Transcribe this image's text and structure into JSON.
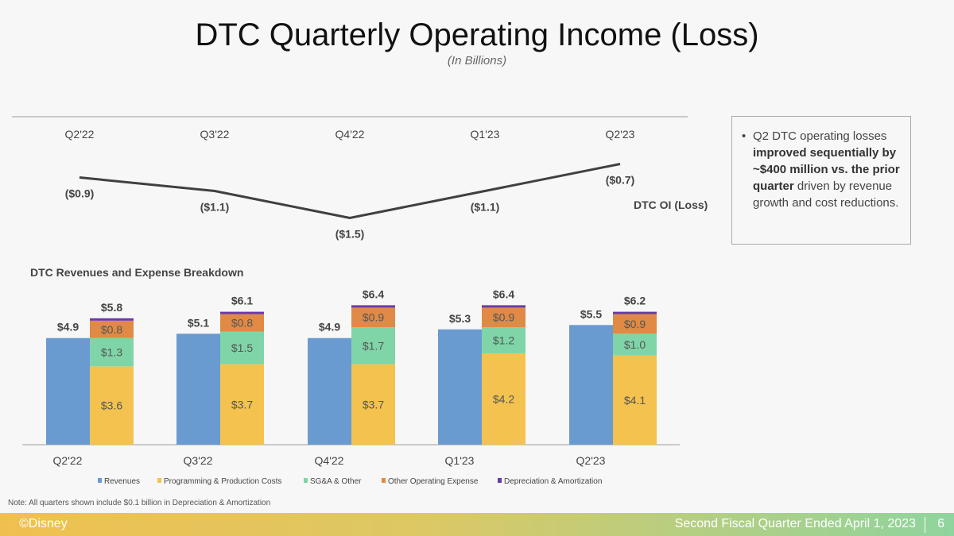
{
  "title": "DTC Quarterly Operating Income (Loss)",
  "subtitle": "(In Billions)",
  "callout": {
    "pre": "Q2 DTC operating losses ",
    "bold": "improved sequentially by ~$400 million vs. the prior quarter",
    "post": " driven by revenue growth and cost reductions."
  },
  "note": "Note: All quarters shown include $0.1 billion in Depreciation & Amortization",
  "footer": {
    "brand": "©Disney",
    "period": "Second Fiscal Quarter Ended April 1, 2023",
    "page": "6"
  },
  "chart_data": [
    {
      "type": "line",
      "title": "",
      "categories": [
        "Q2'22",
        "Q3'22",
        "Q4'22",
        "Q1'23",
        "Q2'23"
      ],
      "series": [
        {
          "name": "DTC OI (Loss)",
          "values": [
            -0.9,
            -1.1,
            -1.5,
            -1.1,
            -0.7
          ]
        }
      ],
      "labels": [
        "($0.9)",
        "($1.1)",
        "($1.5)",
        "($1.1)",
        "($0.7)"
      ],
      "color": "#404040"
    },
    {
      "type": "bar",
      "title": "DTC Revenues and Expense Breakdown",
      "categories": [
        "Q2'22",
        "Q3'22",
        "Q4'22",
        "Q1'23",
        "Q2'23"
      ],
      "revenues": {
        "name": "Revenues",
        "color": "#6a9bd0",
        "values": [
          4.9,
          5.1,
          4.9,
          5.3,
          5.5
        ]
      },
      "expense_series": [
        {
          "name": "Programming & Production Costs",
          "color": "#f3c24f",
          "values": [
            3.6,
            3.7,
            3.7,
            4.2,
            4.1
          ]
        },
        {
          "name": "SG&A & Other",
          "color": "#7fd5a8",
          "values": [
            1.3,
            1.5,
            1.7,
            1.2,
            1.0
          ]
        },
        {
          "name": "Other Operating Expense",
          "color": "#e08a45",
          "values": [
            0.8,
            0.8,
            0.9,
            0.9,
            0.9
          ]
        },
        {
          "name": "Depreciation & Amortization",
          "color": "#6a3aa6",
          "values": [
            0.1,
            0.1,
            0.1,
            0.1,
            0.1
          ]
        }
      ],
      "totals": [
        5.8,
        6.1,
        6.4,
        6.4,
        6.2
      ],
      "legend": "bottom"
    }
  ]
}
